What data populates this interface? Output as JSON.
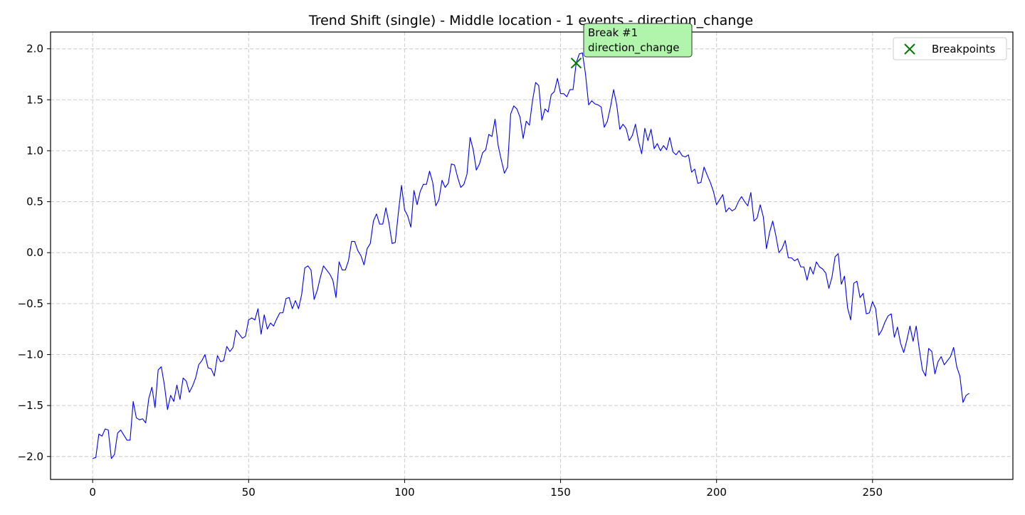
{
  "chart_data": {
    "type": "line",
    "title": "Trend Shift (single) - Middle location - 1 events - direction_change",
    "xlabel": "",
    "ylabel": "",
    "xlim": [
      -13.5,
      295
    ],
    "ylim": [
      -2.225,
      2.165
    ],
    "xticks": [
      0,
      50,
      100,
      150,
      200,
      250
    ],
    "xtick_labels": [
      "0",
      "50",
      "100",
      "150",
      "200",
      "250"
    ],
    "yticks": [
      -2.0,
      -1.5,
      -1.0,
      -0.5,
      0.0,
      0.5,
      1.0,
      1.5,
      2.0
    ],
    "ytick_labels": [
      "−2.0",
      "−1.5",
      "−1.0",
      "−0.5",
      "0.0",
      "0.5",
      "1.0",
      "1.5",
      "2.0"
    ],
    "grid": true,
    "legend_position": "top-right",
    "series": [
      {
        "color": "#0000ee",
        "x_start": 0,
        "x_step": 1,
        "values": [
          -2.02,
          -2.01,
          -1.78,
          -1.8,
          -1.73,
          -1.74,
          -2.02,
          -1.98,
          -1.77,
          -1.74,
          -1.79,
          -1.84,
          -1.84,
          -1.46,
          -1.62,
          -1.64,
          -1.63,
          -1.67,
          -1.43,
          -1.32,
          -1.52,
          -1.15,
          -1.12,
          -1.3,
          -1.54,
          -1.4,
          -1.46,
          -1.3,
          -1.44,
          -1.23,
          -1.26,
          -1.37,
          -1.31,
          -1.23,
          -1.1,
          -1.06,
          -1.0,
          -1.13,
          -1.14,
          -1.21,
          -1.01,
          -1.07,
          -1.06,
          -0.92,
          -0.97,
          -0.93,
          -0.76,
          -0.8,
          -0.84,
          -0.82,
          -0.66,
          -0.64,
          -0.66,
          -0.55,
          -0.8,
          -0.61,
          -0.75,
          -0.69,
          -0.72,
          -0.65,
          -0.59,
          -0.59,
          -0.45,
          -0.44,
          -0.55,
          -0.47,
          -0.55,
          -0.41,
          -0.15,
          -0.13,
          -0.17,
          -0.46,
          -0.37,
          -0.24,
          -0.13,
          -0.17,
          -0.21,
          -0.27,
          -0.44,
          -0.09,
          -0.17,
          -0.17,
          -0.08,
          0.11,
          0.11,
          0.02,
          -0.03,
          -0.12,
          0.04,
          0.09,
          0.31,
          0.38,
          0.28,
          0.28,
          0.44,
          0.29,
          0.09,
          0.1,
          0.39,
          0.66,
          0.42,
          0.36,
          0.25,
          0.61,
          0.47,
          0.6,
          0.67,
          0.67,
          0.8,
          0.69,
          0.46,
          0.52,
          0.71,
          0.64,
          0.68,
          0.87,
          0.86,
          0.74,
          0.64,
          0.67,
          0.77,
          1.13,
          1.01,
          0.81,
          0.87,
          0.98,
          1.01,
          1.16,
          1.14,
          1.31,
          1.05,
          0.91,
          0.78,
          0.84,
          1.36,
          1.44,
          1.41,
          1.33,
          1.12,
          1.29,
          1.25,
          1.49,
          1.67,
          1.64,
          1.3,
          1.41,
          1.38,
          1.55,
          1.58,
          1.71,
          1.56,
          1.56,
          1.53,
          1.6,
          1.6,
          1.86,
          1.95,
          1.96,
          1.75,
          1.45,
          1.49,
          1.46,
          1.45,
          1.43,
          1.23,
          1.29,
          1.43,
          1.6,
          1.45,
          1.21,
          1.26,
          1.22,
          1.1,
          1.15,
          1.26,
          1.09,
          0.97,
          1.22,
          1.1,
          1.21,
          1.02,
          1.07,
          1.0,
          1.05,
          1.01,
          1.13,
          0.99,
          0.96,
          1.0,
          0.95,
          0.94,
          0.96,
          0.79,
          0.82,
          0.68,
          0.69,
          0.84,
          0.76,
          0.69,
          0.6,
          0.47,
          0.52,
          0.57,
          0.4,
          0.44,
          0.41,
          0.43,
          0.5,
          0.55,
          0.5,
          0.46,
          0.59,
          0.31,
          0.34,
          0.47,
          0.35,
          0.04,
          0.2,
          0.31,
          0.17,
          0.0,
          0.04,
          0.12,
          -0.05,
          -0.05,
          -0.08,
          -0.06,
          -0.14,
          -0.14,
          -0.27,
          -0.14,
          -0.21,
          -0.09,
          -0.14,
          -0.16,
          -0.2,
          -0.35,
          -0.24,
          -0.04,
          -0.01,
          -0.31,
          -0.23,
          -0.54,
          -0.66,
          -0.3,
          -0.28,
          -0.44,
          -0.4,
          -0.6,
          -0.59,
          -0.48,
          -0.55,
          -0.81,
          -0.76,
          -0.68,
          -0.62,
          -0.6,
          -0.83,
          -0.73,
          -0.89,
          -0.98,
          -0.86,
          -0.72,
          -0.87,
          -0.72,
          -0.95,
          -1.15,
          -1.21,
          -0.94,
          -0.97,
          -1.19,
          -1.07,
          -1.02,
          -1.1,
          -1.06,
          -1.02,
          -0.93,
          -1.12,
          -1.21,
          -1.47,
          -1.4,
          -1.38
        ]
      }
    ],
    "breakpoints": [
      {
        "x": 155,
        "y": 1.86,
        "color": "#007a00",
        "annotation_lines": [
          "Break #1",
          "direction_change"
        ],
        "annotation_bg": "#b0f5ab"
      }
    ],
    "legend": [
      {
        "label": "Breakpoints",
        "marker": "x-marker",
        "color": "#007a00"
      }
    ]
  }
}
